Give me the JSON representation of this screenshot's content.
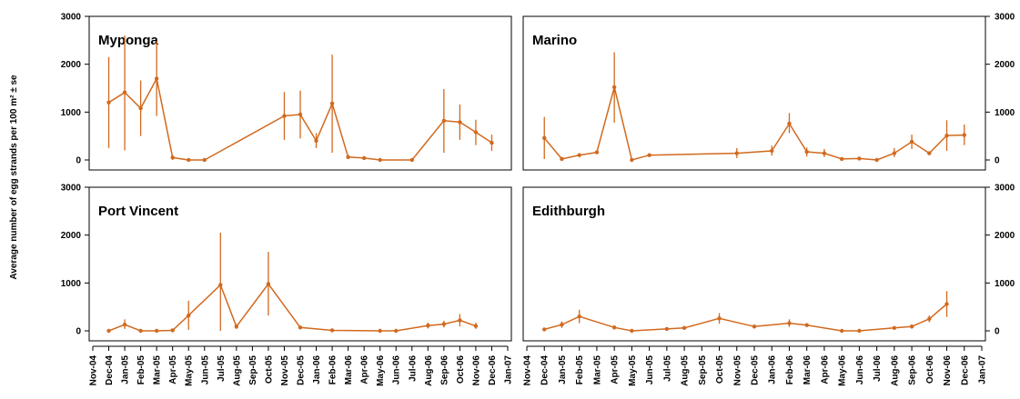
{
  "y_axis_label": "Average number of egg strands per 100 m² ± se",
  "colors": {
    "series": "#d2691e"
  },
  "x_tick_labels_left": [
    "Nov-04",
    "Dec-04",
    "Jan-05",
    "Feb-05",
    "Mar-05",
    "Apr-05",
    "May-05",
    "Jun-05",
    "Jul-05",
    "Aug-05",
    "Sep-05",
    "Oct-05",
    "Nov-05",
    "Dec-05",
    "Jan-06",
    "Feb-06",
    "Mar-06",
    "Apr-06",
    "May-06",
    "Jun-06",
    "Jul-06",
    "Aug-06",
    "Sep-06",
    "Oct-06",
    "Nov-06",
    "Dec-06",
    "Jan-07"
  ],
  "x_tick_labels_right": [
    "Nov-04",
    "Dec-04",
    "Jan-05",
    "Feb-05",
    "Mar-05",
    "Apr-05",
    "May-05",
    "Jun-05",
    "Jul-05",
    "Aug-05",
    "Sep-05",
    "Oct-05",
    "Nov-05",
    "Dec-05",
    "Jan-06",
    "Feb-06",
    "Mar-06",
    "Apr-06",
    "May-06",
    "Jun-06",
    "Jul-06",
    "Aug-06",
    "Sep-06",
    "Oct-06",
    "Nov-06",
    "Dec-06",
    "Jan-07"
  ],
  "chart_data": [
    {
      "type": "line",
      "title": "Myponga",
      "ylim": [
        0,
        3000
      ],
      "yticks": [
        "0",
        "1000",
        "2000",
        "3000"
      ],
      "xlim": [
        0,
        26
      ],
      "points": [
        {
          "x": 1,
          "y": 1200,
          "lo": 250,
          "hi": 2150
        },
        {
          "x": 2,
          "y": 1410,
          "lo": 200,
          "hi": 2600
        },
        {
          "x": 3,
          "y": 1080,
          "lo": 500,
          "hi": 1660
        },
        {
          "x": 4,
          "y": 1700,
          "lo": 920,
          "hi": 2480
        },
        {
          "x": 5,
          "y": 50,
          "lo": 0,
          "hi": 100
        },
        {
          "x": 6,
          "y": 0,
          "lo": 0,
          "hi": 0
        },
        {
          "x": 7,
          "y": 0,
          "lo": 0,
          "hi": 0
        },
        {
          "x": 12,
          "y": 920,
          "lo": 420,
          "hi": 1420
        },
        {
          "x": 13,
          "y": 950,
          "lo": 450,
          "hi": 1450
        },
        {
          "x": 14,
          "y": 400,
          "lo": 250,
          "hi": 560
        },
        {
          "x": 15,
          "y": 1180,
          "lo": 150,
          "hi": 2200
        },
        {
          "x": 16,
          "y": 60,
          "lo": 20,
          "hi": 100
        },
        {
          "x": 17,
          "y": 40,
          "lo": 10,
          "hi": 70
        },
        {
          "x": 18,
          "y": 0,
          "lo": 0,
          "hi": 0
        },
        {
          "x": 20,
          "y": 0,
          "lo": 0,
          "hi": 0
        },
        {
          "x": 22,
          "y": 820,
          "lo": 150,
          "hi": 1480
        },
        {
          "x": 23,
          "y": 790,
          "lo": 420,
          "hi": 1160
        },
        {
          "x": 24,
          "y": 580,
          "lo": 310,
          "hi": 840
        },
        {
          "x": 25,
          "y": 360,
          "lo": 190,
          "hi": 530
        }
      ]
    },
    {
      "type": "line",
      "title": "Marino",
      "ylim": [
        0,
        3000
      ],
      "yticks": [
        "0",
        "1000",
        "2000",
        "3000"
      ],
      "xlim": [
        0,
        26
      ],
      "points": [
        {
          "x": 1,
          "y": 460,
          "lo": 20,
          "hi": 900
        },
        {
          "x": 2,
          "y": 20,
          "lo": 0,
          "hi": 40
        },
        {
          "x": 3,
          "y": 100,
          "lo": 70,
          "hi": 130
        },
        {
          "x": 4,
          "y": 160,
          "lo": 130,
          "hi": 190
        },
        {
          "x": 5,
          "y": 1520,
          "lo": 780,
          "hi": 2250
        },
        {
          "x": 6,
          "y": 0,
          "lo": 0,
          "hi": 0
        },
        {
          "x": 7,
          "y": 100,
          "lo": 80,
          "hi": 120
        },
        {
          "x": 12,
          "y": 140,
          "lo": 40,
          "hi": 250
        },
        {
          "x": 14,
          "y": 190,
          "lo": 90,
          "hi": 300
        },
        {
          "x": 15,
          "y": 760,
          "lo": 560,
          "hi": 980
        },
        {
          "x": 16,
          "y": 170,
          "lo": 70,
          "hi": 260
        },
        {
          "x": 17,
          "y": 140,
          "lo": 60,
          "hi": 230
        },
        {
          "x": 18,
          "y": 20,
          "lo": 0,
          "hi": 40
        },
        {
          "x": 19,
          "y": 30,
          "lo": 0,
          "hi": 60
        },
        {
          "x": 20,
          "y": 0,
          "lo": 0,
          "hi": 0
        },
        {
          "x": 21,
          "y": 140,
          "lo": 60,
          "hi": 250
        },
        {
          "x": 22,
          "y": 380,
          "lo": 230,
          "hi": 530
        },
        {
          "x": 23,
          "y": 140,
          "lo": 110,
          "hi": 170
        },
        {
          "x": 24,
          "y": 510,
          "lo": 190,
          "hi": 830
        },
        {
          "x": 25,
          "y": 520,
          "lo": 310,
          "hi": 740
        }
      ]
    },
    {
      "type": "line",
      "title": "Port Vincent",
      "ylim": [
        0,
        3000
      ],
      "yticks": [
        "0",
        "1000",
        "2000",
        "3000"
      ],
      "xlim": [
        0,
        26
      ],
      "points": [
        {
          "x": 1,
          "y": 0,
          "lo": 0,
          "hi": 0
        },
        {
          "x": 2,
          "y": 130,
          "lo": 40,
          "hi": 240
        },
        {
          "x": 3,
          "y": 0,
          "lo": 0,
          "hi": 0
        },
        {
          "x": 4,
          "y": 0,
          "lo": 0,
          "hi": 0
        },
        {
          "x": 5,
          "y": 10,
          "lo": 0,
          "hi": 20
        },
        {
          "x": 6,
          "y": 320,
          "lo": 20,
          "hi": 630
        },
        {
          "x": 8,
          "y": 960,
          "lo": 0,
          "hi": 2050
        },
        {
          "x": 9,
          "y": 90,
          "lo": 40,
          "hi": 140
        },
        {
          "x": 11,
          "y": 980,
          "lo": 320,
          "hi": 1650
        },
        {
          "x": 13,
          "y": 70,
          "lo": 40,
          "hi": 100
        },
        {
          "x": 15,
          "y": 10,
          "lo": 0,
          "hi": 20
        },
        {
          "x": 18,
          "y": 0,
          "lo": 0,
          "hi": 0
        },
        {
          "x": 19,
          "y": 0,
          "lo": 0,
          "hi": 0
        },
        {
          "x": 21,
          "y": 110,
          "lo": 50,
          "hi": 170
        },
        {
          "x": 22,
          "y": 140,
          "lo": 70,
          "hi": 210
        },
        {
          "x": 23,
          "y": 220,
          "lo": 90,
          "hi": 350
        },
        {
          "x": 24,
          "y": 100,
          "lo": 40,
          "hi": 170
        }
      ]
    },
    {
      "type": "line",
      "title": "Edithburgh",
      "ylim": [
        0,
        3000
      ],
      "yticks": [
        "0",
        "1000",
        "2000",
        "3000"
      ],
      "xlim": [
        0,
        26
      ],
      "points": [
        {
          "x": 1,
          "y": 30,
          "lo": 10,
          "hi": 50
        },
        {
          "x": 2,
          "y": 130,
          "lo": 60,
          "hi": 200
        },
        {
          "x": 3,
          "y": 300,
          "lo": 160,
          "hi": 440
        },
        {
          "x": 5,
          "y": 70,
          "lo": 30,
          "hi": 110
        },
        {
          "x": 6,
          "y": 0,
          "lo": 0,
          "hi": 0
        },
        {
          "x": 8,
          "y": 40,
          "lo": 20,
          "hi": 60
        },
        {
          "x": 9,
          "y": 60,
          "lo": 40,
          "hi": 80
        },
        {
          "x": 11,
          "y": 260,
          "lo": 150,
          "hi": 370
        },
        {
          "x": 13,
          "y": 90,
          "lo": 60,
          "hi": 120
        },
        {
          "x": 15,
          "y": 160,
          "lo": 80,
          "hi": 240
        },
        {
          "x": 16,
          "y": 120,
          "lo": 80,
          "hi": 160
        },
        {
          "x": 18,
          "y": 0,
          "lo": 0,
          "hi": 0
        },
        {
          "x": 19,
          "y": 0,
          "lo": 0,
          "hi": 0
        },
        {
          "x": 21,
          "y": 60,
          "lo": 30,
          "hi": 90
        },
        {
          "x": 22,
          "y": 90,
          "lo": 50,
          "hi": 130
        },
        {
          "x": 23,
          "y": 250,
          "lo": 180,
          "hi": 320
        },
        {
          "x": 24,
          "y": 560,
          "lo": 290,
          "hi": 830
        }
      ]
    }
  ]
}
